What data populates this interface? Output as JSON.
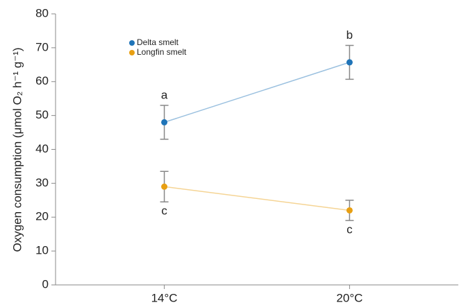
{
  "chart_data": {
    "type": "line",
    "y_label": "Oxygen consumption (μmol O₂ h⁻¹ g⁻¹)",
    "categories": [
      "14°C",
      "20°C"
    ],
    "series": [
      {
        "name": "Delta smelt",
        "color": "#1f74b8",
        "values": [
          48,
          65.7
        ],
        "errors": [
          5,
          5
        ],
        "labels": [
          "a",
          "b"
        ]
      },
      {
        "name": "Longfin smelt",
        "color": "#e89f12",
        "values": [
          29,
          22
        ],
        "errors": [
          4.5,
          3
        ],
        "labels": [
          "c",
          "c"
        ]
      }
    ],
    "ylim": [
      0,
      80
    ],
    "yticks": [
      0,
      10,
      20,
      30,
      40,
      50,
      60,
      70,
      80
    ],
    "legend": "upper-left"
  }
}
